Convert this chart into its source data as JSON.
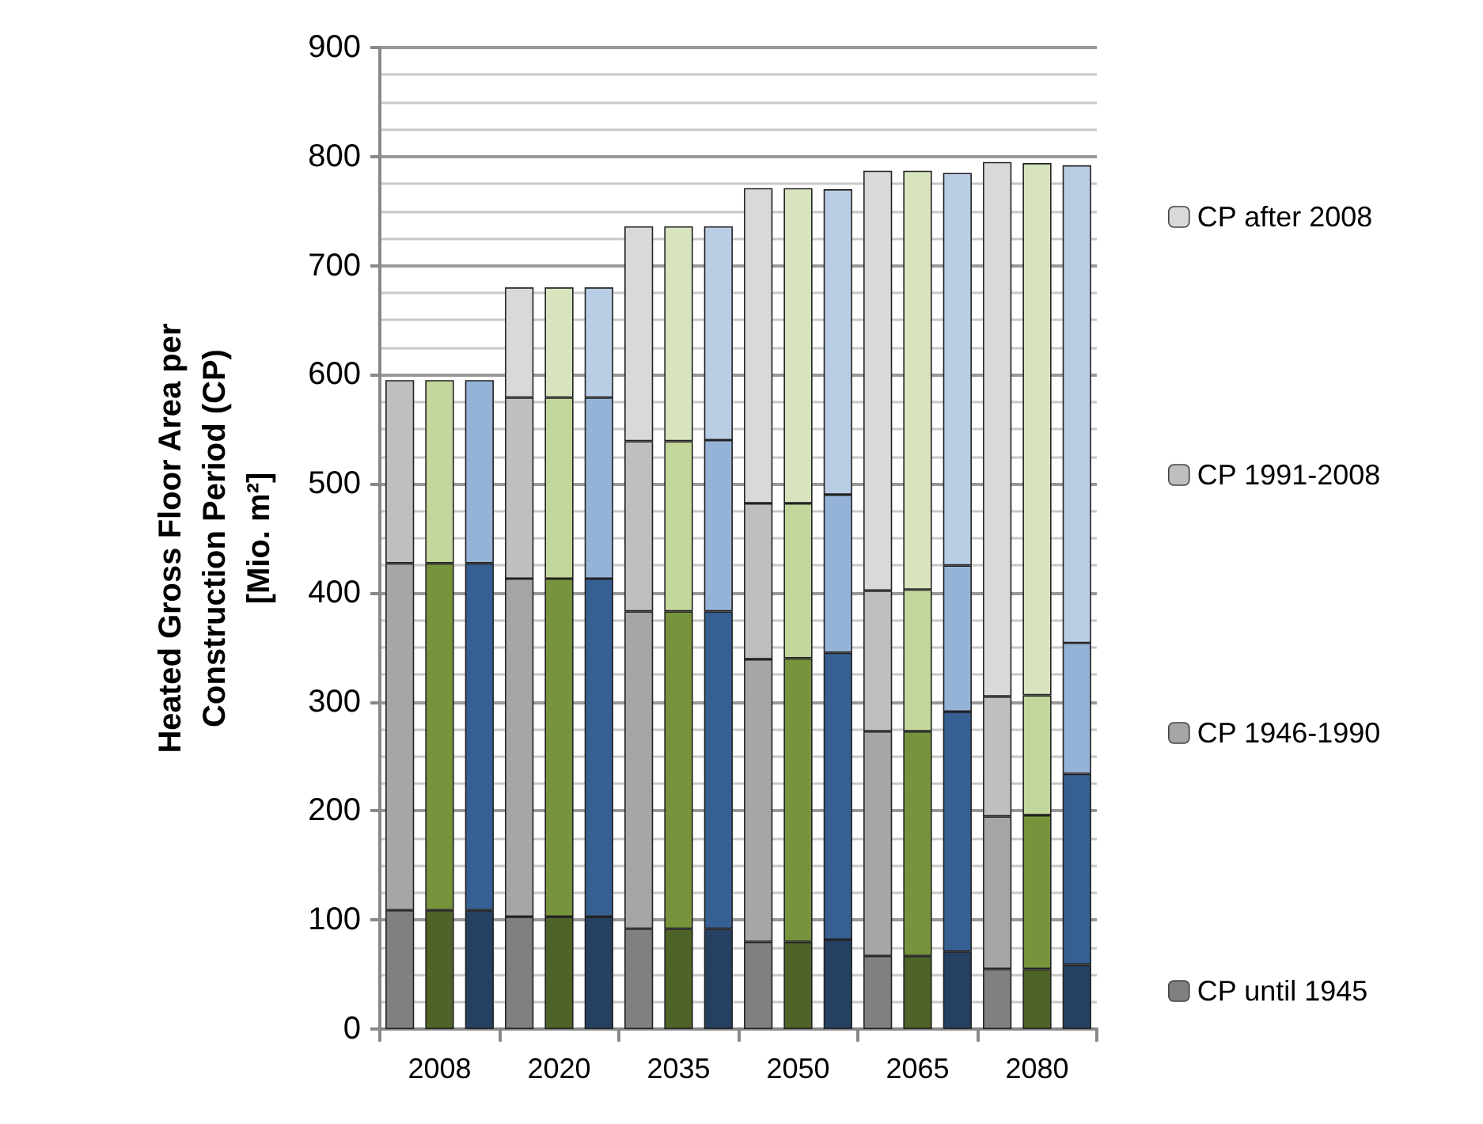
{
  "chart_data": {
    "type": "bar",
    "stacked": true,
    "ylabel": "Heated Gross Floor Area per\nConstruction Period (CP)\n[Mio. m²]",
    "categories": [
      null,
      "2008",
      null,
      null,
      "2020",
      null,
      null,
      "2035",
      null,
      null,
      "2050",
      null,
      null,
      "2065",
      null,
      null,
      "2080",
      null
    ],
    "series": [
      {
        "name": "CP until 1945",
        "color": "#808080",
        "colors": [
          "#808080",
          "#4f6228",
          "#254061",
          "#808080",
          "#4f6228",
          "#254061",
          "#808080",
          "#4f6228",
          "#254061",
          "#808080",
          "#4f6228",
          "#254061",
          "#808080",
          "#4f6228",
          "#254061",
          "#808080",
          "#4f6228",
          "#254061"
        ],
        "values": [
          109,
          109,
          109,
          103,
          103,
          103,
          92,
          92,
          92,
          80,
          80,
          82,
          67,
          67,
          71,
          55,
          55,
          59
        ]
      },
      {
        "name": "CP 1946-1990",
        "color": "#a6a6a6",
        "colors": [
          "#a6a6a6",
          "#77933c",
          "#376092",
          "#a6a6a6",
          "#77933c",
          "#376092",
          "#a6a6a6",
          "#77933c",
          "#376092",
          "#a6a6a6",
          "#77933c",
          "#376092",
          "#a6a6a6",
          "#77933c",
          "#376092",
          "#a6a6a6",
          "#77933c",
          "#376092"
        ],
        "values": [
          318,
          318,
          318,
          310,
          310,
          310,
          291,
          291,
          291,
          259,
          260,
          263,
          206,
          206,
          220,
          140,
          141,
          175
        ]
      },
      {
        "name": "CP 1991-2008",
        "color": "#bfbfbf",
        "colors": [
          "#bfbfbf",
          "#c3d69b",
          "#95b3d7",
          "#bfbfbf",
          "#c3d69b",
          "#95b3d7",
          "#bfbfbf",
          "#c3d69b",
          "#95b3d7",
          "#bfbfbf",
          "#c3d69b",
          "#95b3d7",
          "#bfbfbf",
          "#c3d69b",
          "#95b3d7",
          "#bfbfbf",
          "#c3d69b",
          "#95b3d7"
        ],
        "values": [
          168,
          168,
          168,
          166,
          166,
          166,
          156,
          156,
          157,
          143,
          142,
          145,
          129,
          130,
          134,
          110,
          110,
          120
        ]
      },
      {
        "name": "CP after 2008",
        "color": "#d9d9d9",
        "colors": [
          "#d9d9d9",
          "#d7e4bd",
          "#b9cde5",
          "#d9d9d9",
          "#d7e4bd",
          "#b9cde5",
          "#d9d9d9",
          "#d7e4bd",
          "#b9cde5",
          "#d9d9d9",
          "#d7e4bd",
          "#b9cde5",
          "#d9d9d9",
          "#d7e4bd",
          "#b9cde5",
          "#d9d9d9",
          "#d7e4bd",
          "#b9cde5"
        ],
        "values": [
          null,
          null,
          null,
          101,
          101,
          101,
          197,
          197,
          196,
          289,
          289,
          280,
          385,
          384,
          360,
          490,
          488,
          438
        ]
      }
    ],
    "ylim": [
      0,
      900
    ],
    "yticks": [
      0,
      100,
      200,
      300,
      400,
      500,
      600,
      700,
      800,
      900
    ],
    "grid": "y",
    "legend": "right"
  }
}
